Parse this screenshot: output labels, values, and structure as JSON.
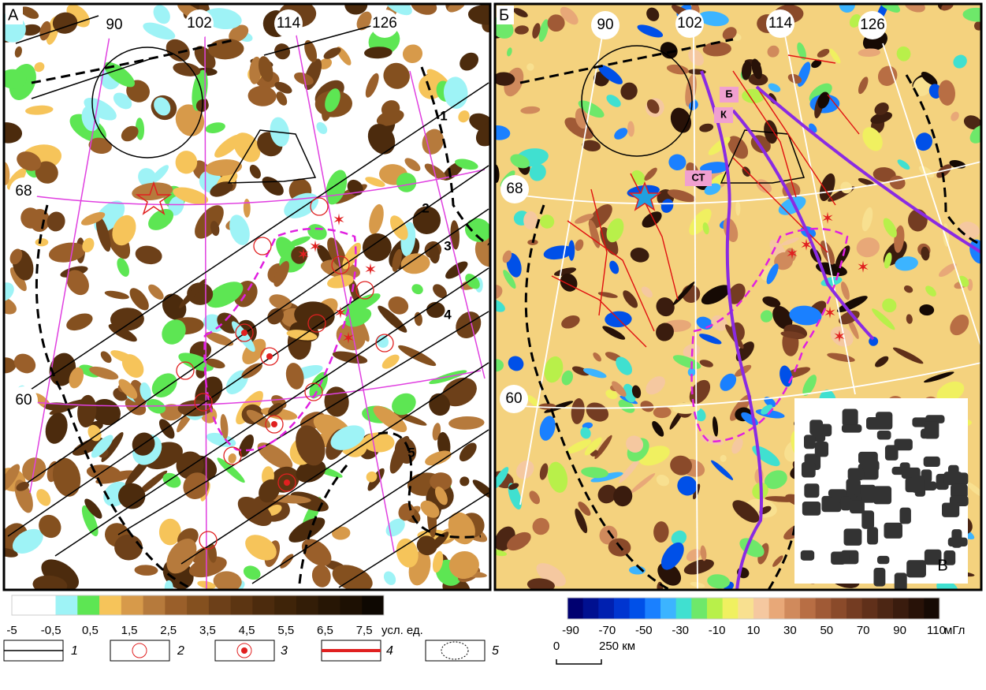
{
  "panels": [
    {
      "label": "А",
      "lon_labels": [
        "90",
        "102",
        "114",
        "126"
      ],
      "lat_labels": [
        "68",
        "60"
      ],
      "profile_labels": [
        "1",
        "2",
        "3",
        "4",
        "5"
      ]
    },
    {
      "label": "Б",
      "lon_labels": [
        "90",
        "102",
        "114",
        "126"
      ],
      "lat_labels": [
        "68",
        "60"
      ],
      "fault_labels": [
        "Б",
        "К",
        "СТ"
      ],
      "inset_label": "В"
    }
  ],
  "scale_a": {
    "ticks": [
      "-5",
      "-0,5",
      "0,5",
      "1,5",
      "2,5",
      "3,5",
      "4,5",
      "5,5",
      "6,5",
      "7,5"
    ],
    "unit": "усл. ед.",
    "colors": [
      "#ffffff",
      "#ffffff",
      "#9ef3f6",
      "#5de653",
      "#f6c45a",
      "#d79a4a",
      "#b67a3c",
      "#9a5f2a",
      "#84501f",
      "#6d4019",
      "#5c3512",
      "#4c2b0d",
      "#3f2409",
      "#331d07",
      "#271605",
      "#1d1003",
      "#0e0802"
    ]
  },
  "scale_b": {
    "ticks": [
      "-90",
      "-70",
      "-50",
      "-30",
      "-10",
      "10",
      "30",
      "50",
      "70",
      "90",
      "110"
    ],
    "unit": "мГл",
    "colors": [
      "#000070",
      "#001090",
      "#0020b0",
      "#0035d0",
      "#0050e8",
      "#1a80ff",
      "#3cb4ff",
      "#40e0d0",
      "#6ee86a",
      "#b8f04a",
      "#f0f060",
      "#f8e090",
      "#f5c8a0",
      "#e8a878",
      "#d08a5c",
      "#b86e44",
      "#a05a36",
      "#8a4a2a",
      "#743c22",
      "#60301a",
      "#4c2614",
      "#3a1c0e",
      "#281208",
      "#160a04"
    ]
  },
  "legend": [
    "1",
    "2",
    "3",
    "4",
    "5"
  ],
  "scale_bar": {
    "start": "0",
    "end": "250 км"
  }
}
